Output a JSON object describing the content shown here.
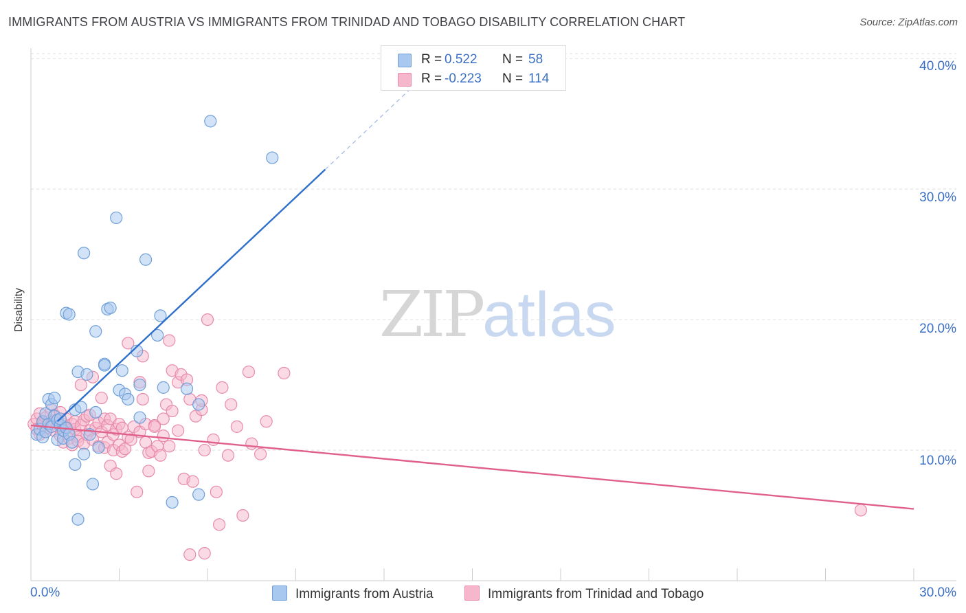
{
  "title": "IMMIGRANTS FROM AUSTRIA VS IMMIGRANTS FROM TRINIDAD AND TOBAGO DISABILITY CORRELATION CHART",
  "source": "Source: ZipAtlas.com",
  "watermark": {
    "part1": "ZIP",
    "part2": "atlas"
  },
  "legend": {
    "austria": {
      "r_label": "R =",
      "r_value": "0.522",
      "n_label": "N =",
      "n_value": "58"
    },
    "trinidad": {
      "r_label": "R =",
      "r_value": "-0.223",
      "n_label": "N =",
      "n_value": "114"
    }
  },
  "bottom_legend": {
    "austria": "Immigrants from Austria",
    "trinidad": "Immigrants from Trinidad and Tobago"
  },
  "colors": {
    "austria_fill": "#a8c8f0",
    "austria_stroke": "#6f9fd8",
    "austria_line": "#2f6fcc",
    "trinidad_fill": "#f6b6cb",
    "trinidad_stroke": "#e88aaa",
    "trinidad_line": "#e0608a",
    "tick": "#3b6fc4"
  },
  "chart_data": {
    "type": "scatter",
    "title": "IMMIGRANTS FROM AUSTRIA VS IMMIGRANTS FROM TRINIDAD AND TOBAGO DISABILITY CORRELATION CHART",
    "xlabel": "",
    "ylabel": "Disability",
    "xlim": [
      0,
      30
    ],
    "ylim": [
      0,
      40.8
    ],
    "x_tick_labels": [
      "0.0%",
      "30.0%"
    ],
    "y_tick_labels": [
      "10.0%",
      "20.0%",
      "30.0%",
      "40.0%"
    ],
    "y_ticks": [
      10,
      20,
      30,
      40
    ],
    "legend_position": "top-center",
    "series": [
      {
        "name": "Immigrants from Austria",
        "r": 0.522,
        "n": 58,
        "trend": {
          "x": [
            0.9,
            10.0
          ],
          "y": [
            12.2,
            31.5
          ]
        },
        "trend_dashed": {
          "x": [
            10.0,
            13.0
          ],
          "y": [
            31.5,
            37.9
          ]
        },
        "points": [
          [
            0.2,
            11.2
          ],
          [
            0.3,
            11.6
          ],
          [
            0.4,
            12.2
          ],
          [
            0.4,
            11.0
          ],
          [
            0.5,
            12.8
          ],
          [
            0.5,
            11.4
          ],
          [
            0.6,
            13.9
          ],
          [
            0.6,
            12.0
          ],
          [
            0.7,
            13.5
          ],
          [
            0.7,
            11.8
          ],
          [
            0.8,
            14.0
          ],
          [
            0.8,
            12.6
          ],
          [
            0.9,
            10.8
          ],
          [
            0.9,
            12.3
          ],
          [
            1.0,
            11.9
          ],
          [
            1.0,
            12.4
          ],
          [
            1.1,
            10.9
          ],
          [
            1.1,
            11.5
          ],
          [
            1.2,
            11.7
          ],
          [
            1.2,
            20.5
          ],
          [
            1.3,
            11.2
          ],
          [
            1.3,
            20.4
          ],
          [
            1.4,
            10.6
          ],
          [
            1.5,
            13.1
          ],
          [
            1.5,
            8.9
          ],
          [
            1.6,
            16.0
          ],
          [
            1.6,
            4.7
          ],
          [
            1.7,
            13.3
          ],
          [
            1.8,
            9.7
          ],
          [
            1.8,
            25.1
          ],
          [
            1.9,
            15.8
          ],
          [
            2.0,
            11.2
          ],
          [
            2.1,
            7.4
          ],
          [
            2.2,
            12.9
          ],
          [
            2.2,
            19.1
          ],
          [
            2.3,
            10.2
          ],
          [
            2.5,
            16.6
          ],
          [
            2.5,
            16.5
          ],
          [
            2.6,
            20.8
          ],
          [
            2.7,
            20.9
          ],
          [
            2.9,
            27.8
          ],
          [
            3.0,
            14.6
          ],
          [
            3.1,
            16.1
          ],
          [
            3.2,
            14.3
          ],
          [
            3.3,
            13.9
          ],
          [
            3.6,
            17.6
          ],
          [
            3.7,
            12.5
          ],
          [
            3.7,
            15.0
          ],
          [
            3.9,
            24.6
          ],
          [
            4.3,
            18.8
          ],
          [
            4.4,
            20.3
          ],
          [
            4.5,
            14.8
          ],
          [
            4.8,
            6.0
          ],
          [
            5.3,
            14.7
          ],
          [
            5.7,
            6.6
          ],
          [
            5.7,
            13.5
          ],
          [
            6.1,
            35.2
          ],
          [
            8.2,
            32.4
          ]
        ]
      },
      {
        "name": "Immigrants from Trinidad and Tobago",
        "r": -0.223,
        "n": 114,
        "trend": {
          "x": [
            0.0,
            30.0
          ],
          "y": [
            11.9,
            5.5
          ]
        },
        "points": [
          [
            0.1,
            12.0
          ],
          [
            0.2,
            12.4
          ],
          [
            0.2,
            11.6
          ],
          [
            0.3,
            12.8
          ],
          [
            0.3,
            11.2
          ],
          [
            0.4,
            12.1
          ],
          [
            0.4,
            11.9
          ],
          [
            0.5,
            12.5
          ],
          [
            0.5,
            11.4
          ],
          [
            0.6,
            12.2
          ],
          [
            0.6,
            11.7
          ],
          [
            0.7,
            13.1
          ],
          [
            0.7,
            12.0
          ],
          [
            0.8,
            11.5
          ],
          [
            0.8,
            12.7
          ],
          [
            0.9,
            11.8
          ],
          [
            0.9,
            12.3
          ],
          [
            1.0,
            11.1
          ],
          [
            1.0,
            12.9
          ],
          [
            1.1,
            12.0
          ],
          [
            1.1,
            10.6
          ],
          [
            1.2,
            11.8
          ],
          [
            1.2,
            12.4
          ],
          [
            1.3,
            11.3
          ],
          [
            1.3,
            10.9
          ],
          [
            1.4,
            12.0
          ],
          [
            1.4,
            10.4
          ],
          [
            1.5,
            11.6
          ],
          [
            1.5,
            12.2
          ],
          [
            1.6,
            11.0
          ],
          [
            1.6,
            10.7
          ],
          [
            1.7,
            15.0
          ],
          [
            1.7,
            11.9
          ],
          [
            1.8,
            12.3
          ],
          [
            1.8,
            10.5
          ],
          [
            1.9,
            12.6
          ],
          [
            1.9,
            11.2
          ],
          [
            2.0,
            11.5
          ],
          [
            2.0,
            12.7
          ],
          [
            2.1,
            10.8
          ],
          [
            2.1,
            15.6
          ],
          [
            2.2,
            11.7
          ],
          [
            2.3,
            12.1
          ],
          [
            2.3,
            10.3
          ],
          [
            2.4,
            14.0
          ],
          [
            2.4,
            11.4
          ],
          [
            2.5,
            12.4
          ],
          [
            2.5,
            10.2
          ],
          [
            2.6,
            11.9
          ],
          [
            2.6,
            10.6
          ],
          [
            2.7,
            8.8
          ],
          [
            2.7,
            12.4
          ],
          [
            2.8,
            11.2
          ],
          [
            2.8,
            10.0
          ],
          [
            2.9,
            8.2
          ],
          [
            2.9,
            11.6
          ],
          [
            3.0,
            12.0
          ],
          [
            3.0,
            10.4
          ],
          [
            3.1,
            11.7
          ],
          [
            3.1,
            9.9
          ],
          [
            3.2,
            10.1
          ],
          [
            3.3,
            18.2
          ],
          [
            3.3,
            11.0
          ],
          [
            3.4,
            10.8
          ],
          [
            3.5,
            11.8
          ],
          [
            3.6,
            6.8
          ],
          [
            3.7,
            15.2
          ],
          [
            3.7,
            11.4
          ],
          [
            3.8,
            17.2
          ],
          [
            3.8,
            13.9
          ],
          [
            3.9,
            12.0
          ],
          [
            3.9,
            10.6
          ],
          [
            4.0,
            8.4
          ],
          [
            4.0,
            9.8
          ],
          [
            4.1,
            9.9
          ],
          [
            4.2,
            11.9
          ],
          [
            4.2,
            11.8
          ],
          [
            4.3,
            10.3
          ],
          [
            4.4,
            9.6
          ],
          [
            4.5,
            12.4
          ],
          [
            4.5,
            11.1
          ],
          [
            4.6,
            13.5
          ],
          [
            4.7,
            18.4
          ],
          [
            4.7,
            10.3
          ],
          [
            4.8,
            13.0
          ],
          [
            4.8,
            16.1
          ],
          [
            5.0,
            15.2
          ],
          [
            5.0,
            11.5
          ],
          [
            5.1,
            15.8
          ],
          [
            5.2,
            7.8
          ],
          [
            5.3,
            15.4
          ],
          [
            5.4,
            2.0
          ],
          [
            5.4,
            13.9
          ],
          [
            5.5,
            7.6
          ],
          [
            5.6,
            12.6
          ],
          [
            5.8,
            13.1
          ],
          [
            5.8,
            13.8
          ],
          [
            5.9,
            2.1
          ],
          [
            5.9,
            10.0
          ],
          [
            6.0,
            20.0
          ],
          [
            6.2,
            10.8
          ],
          [
            6.3,
            6.8
          ],
          [
            6.4,
            4.3
          ],
          [
            6.5,
            14.8
          ],
          [
            6.7,
            9.6
          ],
          [
            6.8,
            13.5
          ],
          [
            7.0,
            11.8
          ],
          [
            7.2,
            5.0
          ],
          [
            7.4,
            16.0
          ],
          [
            7.5,
            10.5
          ],
          [
            7.8,
            9.7
          ],
          [
            8.0,
            12.2
          ],
          [
            8.6,
            15.9
          ],
          [
            28.2,
            5.4
          ]
        ]
      }
    ]
  }
}
